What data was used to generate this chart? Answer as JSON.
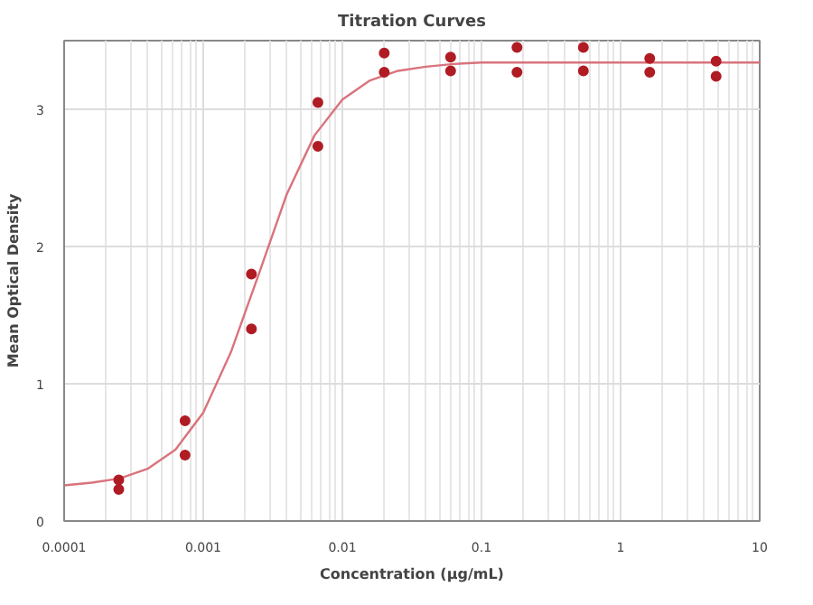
{
  "chart_data": {
    "type": "scatter",
    "title": "Titration Curves",
    "xlabel": "Concentration (µg/mL)",
    "ylabel": "Mean Optical Density",
    "log": "x",
    "grid": true,
    "xlim": [
      0.0001,
      10
    ],
    "xticks": [
      {
        "value": 0.0001,
        "label": "0.0001"
      },
      {
        "value": 0.001,
        "label": "0.001"
      },
      {
        "value": 0.01,
        "label": "0.01"
      },
      {
        "value": 0.1,
        "label": "0.1"
      },
      {
        "value": 1,
        "label": "1"
      },
      {
        "value": 10,
        "label": "10"
      }
    ],
    "ylim": [
      0,
      3.5
    ],
    "yticks": [
      0,
      1,
      2,
      3
    ],
    "series": [
      {
        "marker": "circle",
        "color": "#b01c24",
        "x": [
          0.000247,
          0.000247,
          0.00074,
          0.00074,
          0.00222,
          0.00222,
          0.00667,
          0.00667,
          0.02,
          0.02,
          0.06,
          0.06,
          0.18,
          0.18,
          0.54,
          0.54,
          1.62,
          1.62,
          4.86,
          4.86
        ],
        "values": [
          0.3,
          0.23,
          0.73,
          0.48,
          1.8,
          1.4,
          3.05,
          2.73,
          3.41,
          3.27,
          3.38,
          3.28,
          3.45,
          3.27,
          3.45,
          3.28,
          3.37,
          3.27,
          3.35,
          3.24
        ]
      },
      {
        "type": "line",
        "color": "#d9737c",
        "x": [
          0.0001,
          0.000158,
          0.000251,
          0.000398,
          0.000631,
          0.001,
          0.00158,
          0.00251,
          0.00398,
          0.00631,
          0.01,
          0.0158,
          0.0251,
          0.0398,
          0.0631,
          0.1,
          1,
          10
        ],
        "values": [
          0.26,
          0.28,
          0.31,
          0.38,
          0.52,
          0.79,
          1.23,
          1.8,
          2.38,
          2.81,
          3.07,
          3.21,
          3.28,
          3.31,
          3.33,
          3.34,
          3.34,
          3.34
        ]
      }
    ]
  }
}
